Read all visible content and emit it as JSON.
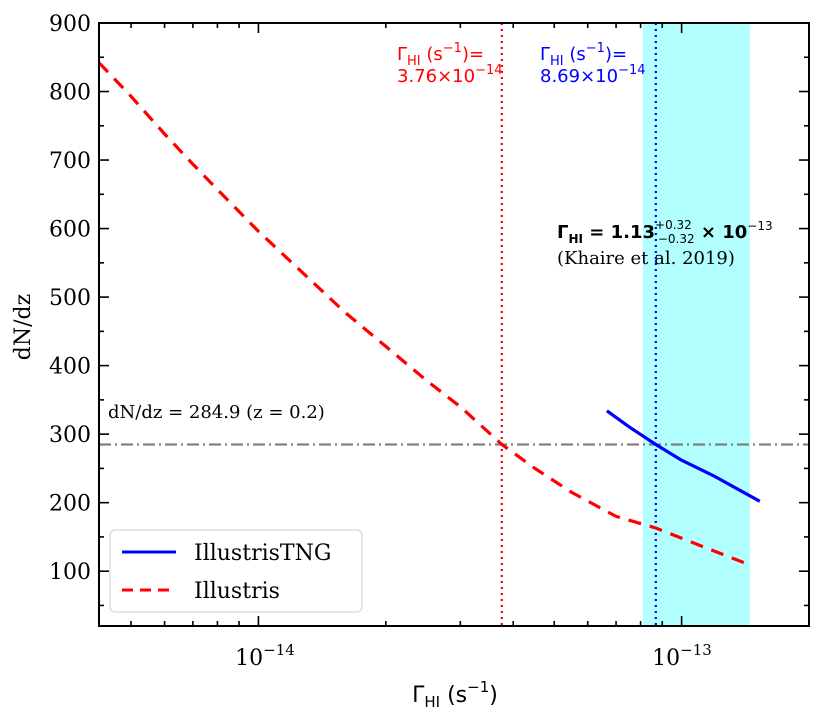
{
  "chart_data": {
    "type": "line",
    "xscale": "log",
    "xlim": [
      4.2e-15,
      2e-13
    ],
    "ylim": [
      20,
      900
    ],
    "xlabel_main": "Γ",
    "xlabel_sub": "HI",
    "xlabel_unit": " (s",
    "xlabel_exp": "−1",
    "xlabel_close": ")",
    "ylabel": "dN/dz",
    "y_ticks": [
      100,
      200,
      300,
      400,
      500,
      600,
      700,
      800,
      900
    ],
    "x_major_ticks": [
      {
        "value": 1e-14,
        "base": "10",
        "exp": "−14"
      },
      {
        "value": 1e-13,
        "base": "10",
        "exp": "−13"
      }
    ],
    "x_minor_ticks": [
      5e-15,
      6e-15,
      7e-15,
      8e-15,
      9e-15,
      2e-14,
      3e-14,
      4e-14,
      5e-14,
      6e-14,
      7e-14,
      8e-14,
      9e-14
    ],
    "series": [
      {
        "name": "IllustrisTNG",
        "color": "#0000ff",
        "style": "solid",
        "x": [
          6.66e-14,
          7.5e-14,
          8.69e-14,
          1e-13,
          1.2e-13,
          1.53e-13
        ],
        "y": [
          334,
          311,
          284.9,
          262,
          238,
          202
        ]
      },
      {
        "name": "Illustris",
        "color": "#ff0000",
        "style": "dashed",
        "x": [
          4.2e-15,
          5e-15,
          6e-15,
          7e-15,
          8e-15,
          1e-14,
          1.3e-14,
          1.6e-14,
          2e-14,
          2.5e-14,
          3e-14,
          3.76e-14,
          4.5e-14,
          5.5e-14,
          7e-14,
          8.69e-14,
          1.1e-13,
          1.41e-13
        ],
        "y": [
          842,
          793,
          738,
          694,
          657,
          596,
          530,
          478,
          428,
          378,
          340,
          285,
          250,
          215,
          180,
          163,
          138,
          112
        ]
      }
    ],
    "legend": {
      "placement": "lower-left",
      "entries": [
        {
          "label": "IllustrisTNG",
          "color": "#0000ff",
          "style": "solid"
        },
        {
          "label": "Illustris",
          "color": "#ff0000",
          "style": "dashed"
        }
      ]
    },
    "hline": {
      "y": 284.9,
      "color": "#808080",
      "style": "dashdot",
      "label": "dN/dz = 284.9 (z = 0.2)"
    },
    "vlines": [
      {
        "x": 3.76e-14,
        "color": "#ff0000",
        "style": "dotted",
        "label_l1_main": "Γ",
        "label_l1_sub": "HI",
        "label_l1_rest": " (s",
        "label_l1_exp": "−1",
        "label_l1_end": ")=",
        "label_l2_base": "3.76×10",
        "label_l2_exp": "−14"
      },
      {
        "x": 8.69e-14,
        "color": "#0000ff",
        "style": "dotted",
        "label_l1_main": "Γ",
        "label_l1_sub": "HI",
        "label_l1_rest": " (s",
        "label_l1_exp": "−1",
        "label_l1_end": ")=",
        "label_l2_base": "8.69×10",
        "label_l2_exp": "−14"
      }
    ],
    "band": {
      "x_min": 8.1e-14,
      "x_max": 1.45e-13,
      "color": "#00ffff",
      "opacity": 0.3
    },
    "khaire": {
      "main": "Γ",
      "sub": "HI",
      "eq": " = 1.13",
      "sup": "+0.32",
      "sub2": "−0.32",
      "times": " × 10",
      "exp": "−13",
      "citation": "(Khaire et al. 2019)"
    }
  }
}
